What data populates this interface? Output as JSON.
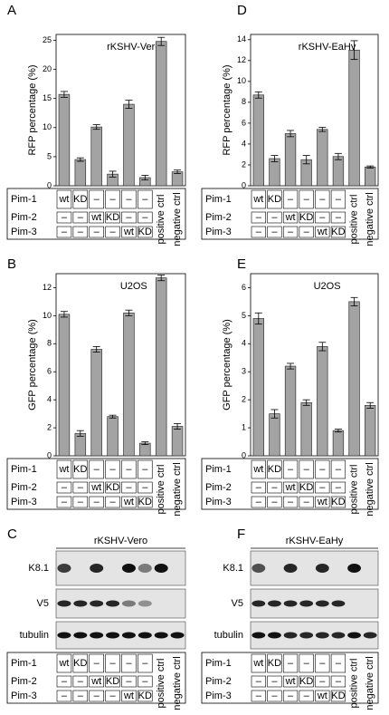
{
  "panels": [
    "A",
    "B",
    "C",
    "D",
    "E",
    "F"
  ],
  "chart_data": [
    {
      "type": "bar",
      "title": "rKSHV-Vero",
      "ylabel": "RFP  percentage  (%)",
      "color": "#a3a3a3",
      "values": [
        15.7,
        4.5,
        10.1,
        2.0,
        14.0,
        1.4,
        24.8,
        2.4
      ],
      "errors": [
        0.5,
        0.3,
        0.4,
        0.5,
        0.7,
        0.4,
        0.7,
        0.3
      ],
      "ylim": [
        0,
        26
      ],
      "yticks": [
        0,
        5,
        10,
        15,
        20,
        25
      ]
    },
    {
      "type": "bar",
      "title": "U2OS",
      "ylabel": "GFP  percentage  (%)",
      "color": "#a3a3a3",
      "values": [
        10.1,
        1.6,
        7.6,
        2.8,
        10.2,
        0.9,
        12.7,
        2.1
      ],
      "errors": [
        0.2,
        0.2,
        0.2,
        0.1,
        0.2,
        0.1,
        0.2,
        0.2
      ],
      "ylim": [
        0,
        13
      ],
      "yticks": [
        0,
        2,
        4,
        6,
        8,
        10,
        12
      ]
    },
    {
      "type": "bar",
      "title": "rKSHV-EaHy",
      "ylabel": "RFP  percentage  (%)",
      "color": "#a3a3a3",
      "values": [
        8.7,
        2.6,
        5.0,
        2.5,
        5.4,
        2.8,
        13.0,
        1.8
      ],
      "errors": [
        0.3,
        0.3,
        0.3,
        0.4,
        0.2,
        0.3,
        0.9,
        0.1
      ],
      "ylim": [
        0,
        14.5
      ],
      "yticks": [
        0,
        2,
        4,
        6,
        8,
        10,
        12,
        14
      ]
    },
    {
      "type": "bar",
      "title": "U2OS",
      "ylabel": "GFP  percentage  (%)",
      "color": "#a3a3a3",
      "values": [
        4.9,
        1.5,
        3.2,
        1.9,
        3.9,
        0.9,
        5.5,
        1.8
      ],
      "errors": [
        0.2,
        0.15,
        0.1,
        0.1,
        0.15,
        0.05,
        0.15,
        0.1
      ],
      "ylim": [
        0,
        6.5
      ],
      "yticks": [
        0,
        1,
        2,
        3,
        4,
        5,
        6
      ]
    }
  ],
  "conditions": {
    "rows": [
      {
        "name": "Pim-1",
        "cells": [
          "wt",
          "KD",
          "–",
          "–",
          "–",
          "–"
        ]
      },
      {
        "name": "Pim-2",
        "cells": [
          "–",
          "–",
          "wt",
          "KD",
          "–",
          "–"
        ]
      },
      {
        "name": "Pim-3",
        "cells": [
          "–",
          "–",
          "–",
          "–",
          "wt",
          "KD"
        ]
      }
    ],
    "controls": [
      "positive  ctrl",
      "negative  ctrl"
    ]
  },
  "blots": [
    {
      "title": "rKSHV-Vero",
      "rows": [
        "K8.1",
        "V5",
        "tubulin"
      ]
    },
    {
      "title": "rKSHV-EaHy",
      "rows": [
        "K8.1",
        "V5",
        "tubulin"
      ]
    }
  ]
}
